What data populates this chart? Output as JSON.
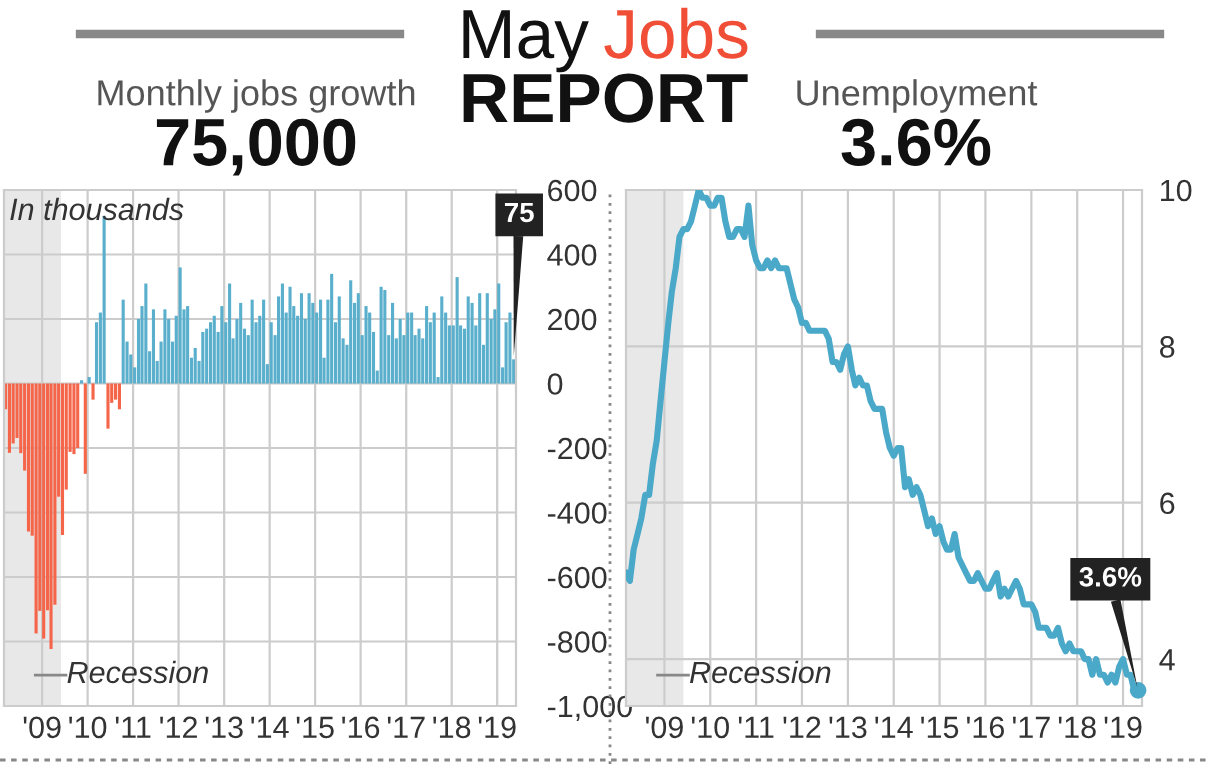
{
  "chart_data": [
    {
      "type": "bar",
      "title": "Monthly jobs growth",
      "subtitle": "75,000",
      "annotations": [
        "May Jobs REPORT",
        "In thousands",
        {
          "text": "75",
          "x": "2019-05",
          "y": 75
        }
      ],
      "x": [
        "2008-03",
        "2008-04",
        "2008-05",
        "2008-06",
        "2008-07",
        "2008-08",
        "2008-09",
        "2008-10",
        "2008-11",
        "2008-12",
        "2009-01",
        "2009-02",
        "2009-03",
        "2009-04",
        "2009-05",
        "2009-06",
        "2009-07",
        "2009-08",
        "2009-09",
        "2009-10",
        "2009-11",
        "2009-12",
        "2010-01",
        "2010-02",
        "2010-03",
        "2010-04",
        "2010-05",
        "2010-06",
        "2010-07",
        "2010-08",
        "2010-09",
        "2010-10",
        "2010-11",
        "2010-12",
        "2011-01",
        "2011-02",
        "2011-03",
        "2011-04",
        "2011-05",
        "2011-06",
        "2011-07",
        "2011-08",
        "2011-09",
        "2011-10",
        "2011-11",
        "2011-12",
        "2012-01",
        "2012-02",
        "2012-03",
        "2012-04",
        "2012-05",
        "2012-06",
        "2012-07",
        "2012-08",
        "2012-09",
        "2012-10",
        "2012-11",
        "2012-12",
        "2013-01",
        "2013-02",
        "2013-03",
        "2013-04",
        "2013-05",
        "2013-06",
        "2013-07",
        "2013-08",
        "2013-09",
        "2013-10",
        "2013-11",
        "2013-12",
        "2014-01",
        "2014-02",
        "2014-03",
        "2014-04",
        "2014-05",
        "2014-06",
        "2014-07",
        "2014-08",
        "2014-09",
        "2014-10",
        "2014-11",
        "2014-12",
        "2015-01",
        "2015-02",
        "2015-03",
        "2015-04",
        "2015-05",
        "2015-06",
        "2015-07",
        "2015-08",
        "2015-09",
        "2015-10",
        "2015-11",
        "2015-12",
        "2016-01",
        "2016-02",
        "2016-03",
        "2016-04",
        "2016-05",
        "2016-06",
        "2016-07",
        "2016-08",
        "2016-09",
        "2016-10",
        "2016-11",
        "2016-12",
        "2017-01",
        "2017-02",
        "2017-03",
        "2017-04",
        "2017-05",
        "2017-06",
        "2017-07",
        "2017-08",
        "2017-09",
        "2017-10",
        "2017-11",
        "2017-12",
        "2018-01",
        "2018-02",
        "2018-03",
        "2018-04",
        "2018-05",
        "2018-06",
        "2018-07",
        "2018-08",
        "2018-09",
        "2018-10",
        "2018-11",
        "2018-12",
        "2019-01",
        "2019-02",
        "2019-03",
        "2019-04",
        "2019-05"
      ],
      "values": [
        -80,
        -215,
        -186,
        -169,
        -216,
        -270,
        -459,
        -472,
        -775,
        -705,
        -791,
        -703,
        -823,
        -686,
        -351,
        -470,
        -329,
        -212,
        -219,
        -200,
        10,
        -280,
        20,
        -50,
        190,
        220,
        520,
        -140,
        -60,
        -50,
        -80,
        260,
        130,
        90,
        50,
        200,
        240,
        310,
        100,
        230,
        70,
        130,
        230,
        200,
        130,
        210,
        360,
        230,
        240,
        80,
        110,
        70,
        160,
        170,
        190,
        210,
        160,
        240,
        190,
        310,
        140,
        200,
        250,
        170,
        150,
        260,
        190,
        210,
        260,
        60,
        190,
        150,
        270,
        310,
        220,
        300,
        240,
        210,
        280,
        200,
        280,
        250,
        220,
        260,
        80,
        260,
        340,
        190,
        270,
        140,
        120,
        320,
        250,
        280,
        150,
        240,
        220,
        160,
        40,
        300,
        290,
        150,
        250,
        140,
        200,
        150,
        220,
        220,
        150,
        170,
        140,
        240,
        190,
        220,
        20,
        270,
        220,
        180,
        180,
        330,
        180,
        170,
        270,
        250,
        180,
        280,
        120,
        280,
        200,
        230,
        310,
        50,
        190,
        220,
        75
      ],
      "colors": [
        "#f4654a",
        "#f4654a",
        "#f4654a",
        "#f4654a",
        "#f4654a",
        "#f4654a",
        "#f4654a",
        "#f4654a",
        "#f4654a",
        "#f4654a",
        "#f4654a",
        "#f4654a",
        "#f4654a",
        "#f4654a",
        "#f4654a",
        "#f4654a",
        "#f4654a",
        "#f4654a",
        "#f4654a",
        "#f4654a",
        "#5aafcc",
        "#f4654a",
        "#5aafcc",
        "#f4654a",
        "#5aafcc",
        "#5aafcc",
        "#5aafcc",
        "#f4654a",
        "#f4654a",
        "#f4654a",
        "#f4654a",
        "#5aafcc",
        "#5aafcc",
        "#5aafcc",
        "#5aafcc",
        "#5aafcc",
        "#5aafcc",
        "#5aafcc",
        "#5aafcc",
        "#5aafcc",
        "#5aafcc",
        "#5aafcc",
        "#5aafcc",
        "#5aafcc",
        "#5aafcc",
        "#5aafcc",
        "#5aafcc",
        "#5aafcc",
        "#5aafcc",
        "#5aafcc",
        "#5aafcc",
        "#5aafcc",
        "#5aafcc",
        "#5aafcc",
        "#5aafcc",
        "#5aafcc",
        "#5aafcc",
        "#5aafcc",
        "#5aafcc",
        "#5aafcc",
        "#5aafcc",
        "#5aafcc",
        "#5aafcc",
        "#5aafcc",
        "#5aafcc",
        "#5aafcc",
        "#5aafcc",
        "#5aafcc",
        "#5aafcc",
        "#5aafcc",
        "#5aafcc",
        "#5aafcc",
        "#5aafcc",
        "#5aafcc",
        "#5aafcc",
        "#5aafcc",
        "#5aafcc",
        "#5aafcc",
        "#5aafcc",
        "#5aafcc",
        "#5aafcc",
        "#5aafcc",
        "#5aafcc",
        "#5aafcc",
        "#5aafcc",
        "#5aafcc",
        "#5aafcc",
        "#5aafcc",
        "#5aafcc",
        "#5aafcc",
        "#5aafcc",
        "#5aafcc",
        "#5aafcc",
        "#5aafcc",
        "#5aafcc",
        "#5aafcc",
        "#5aafcc",
        "#5aafcc",
        "#5aafcc",
        "#5aafcc",
        "#5aafcc",
        "#5aafcc",
        "#5aafcc",
        "#5aafcc",
        "#5aafcc",
        "#5aafcc",
        "#5aafcc",
        "#5aafcc",
        "#5aafcc",
        "#5aafcc",
        "#5aafcc",
        "#5aafcc",
        "#5aafcc",
        "#5aafcc",
        "#5aafcc",
        "#5aafcc",
        "#5aafcc",
        "#5aafcc",
        "#5aafcc",
        "#5aafcc",
        "#5aafcc",
        "#5aafcc",
        "#5aafcc",
        "#5aafcc",
        "#5aafcc",
        "#5aafcc",
        "#5aafcc",
        "#5aafcc",
        "#5aafcc",
        "#5aafcc",
        "#5aafcc",
        "#5aafcc",
        "#5aafcc",
        "#5aafcc",
        "#5aafcc"
      ],
      "xlim": [
        "2008-03",
        "2019-06"
      ],
      "xticks": [
        {
          "value": "2009-01",
          "label": "'09"
        },
        {
          "value": "2010-01",
          "label": "'10"
        },
        {
          "value": "2011-01",
          "label": "'11"
        },
        {
          "value": "2012-01",
          "label": "'12"
        },
        {
          "value": "2013-01",
          "label": "'13"
        },
        {
          "value": "2014-01",
          "label": "'14"
        },
        {
          "value": "2015-01",
          "label": "'15"
        },
        {
          "value": "2016-01",
          "label": "'16"
        },
        {
          "value": "2017-01",
          "label": "'17"
        },
        {
          "value": "2018-01",
          "label": "'18"
        },
        {
          "value": "2019-01",
          "label": "'19"
        }
      ],
      "ylim": [
        -1000,
        600
      ],
      "yticks": [
        600,
        400,
        200,
        0,
        -200,
        -400,
        -600,
        -800,
        {
          "value": -1000,
          "label": "-1,000"
        }
      ],
      "bands": [
        {
          "axis": "x",
          "from": "2008-03",
          "to": "2009-06",
          "label": "Recession",
          "color": "#e8e8e8"
        }
      ],
      "grid": true
    },
    {
      "type": "line",
      "title": "Unemployment",
      "subtitle": "3.6%",
      "annotations": [
        {
          "text": "3.6%",
          "x": "2019-05",
          "y": 3.6
        }
      ],
      "x": [
        "2008-03",
        "2008-04",
        "2008-05",
        "2008-06",
        "2008-07",
        "2008-08",
        "2008-09",
        "2008-10",
        "2008-11",
        "2008-12",
        "2009-01",
        "2009-02",
        "2009-03",
        "2009-04",
        "2009-05",
        "2009-06",
        "2009-07",
        "2009-08",
        "2009-09",
        "2009-10",
        "2009-11",
        "2009-12",
        "2010-01",
        "2010-02",
        "2010-03",
        "2010-04",
        "2010-05",
        "2010-06",
        "2010-07",
        "2010-08",
        "2010-09",
        "2010-10",
        "2010-11",
        "2010-12",
        "2011-01",
        "2011-02",
        "2011-03",
        "2011-04",
        "2011-05",
        "2011-06",
        "2011-07",
        "2011-08",
        "2011-09",
        "2011-10",
        "2011-11",
        "2011-12",
        "2012-01",
        "2012-02",
        "2012-03",
        "2012-04",
        "2012-05",
        "2012-06",
        "2012-07",
        "2012-08",
        "2012-09",
        "2012-10",
        "2012-11",
        "2012-12",
        "2013-01",
        "2013-02",
        "2013-03",
        "2013-04",
        "2013-05",
        "2013-06",
        "2013-07",
        "2013-08",
        "2013-09",
        "2013-10",
        "2013-11",
        "2013-12",
        "2014-01",
        "2014-02",
        "2014-03",
        "2014-04",
        "2014-05",
        "2014-06",
        "2014-07",
        "2014-08",
        "2014-09",
        "2014-10",
        "2014-11",
        "2014-12",
        "2015-01",
        "2015-02",
        "2015-03",
        "2015-04",
        "2015-05",
        "2015-06",
        "2015-07",
        "2015-08",
        "2015-09",
        "2015-10",
        "2015-11",
        "2015-12",
        "2016-01",
        "2016-02",
        "2016-03",
        "2016-04",
        "2016-05",
        "2016-06",
        "2016-07",
        "2016-08",
        "2016-09",
        "2016-10",
        "2016-11",
        "2016-12",
        "2017-01",
        "2017-02",
        "2017-03",
        "2017-04",
        "2017-05",
        "2017-06",
        "2017-07",
        "2017-08",
        "2017-09",
        "2017-10",
        "2017-11",
        "2017-12",
        "2018-01",
        "2018-02",
        "2018-03",
        "2018-04",
        "2018-05",
        "2018-06",
        "2018-07",
        "2018-08",
        "2018-09",
        "2018-10",
        "2018-11",
        "2018-12",
        "2019-01",
        "2019-02",
        "2019-03",
        "2019-04",
        "2019-05"
      ],
      "values": [
        5.1,
        5.0,
        5.4,
        5.6,
        5.8,
        6.1,
        6.1,
        6.5,
        6.8,
        7.3,
        7.8,
        8.3,
        8.7,
        9.0,
        9.4,
        9.5,
        9.5,
        9.6,
        9.8,
        10.0,
        9.9,
        9.9,
        9.8,
        9.8,
        9.9,
        9.9,
        9.6,
        9.4,
        9.4,
        9.5,
        9.5,
        9.4,
        9.8,
        9.3,
        9.1,
        9.0,
        9.0,
        9.1,
        9.0,
        9.1,
        9.0,
        9.0,
        9.0,
        8.8,
        8.6,
        8.5,
        8.3,
        8.3,
        8.2,
        8.2,
        8.2,
        8.2,
        8.2,
        8.1,
        7.8,
        7.8,
        7.7,
        7.9,
        8.0,
        7.7,
        7.5,
        7.6,
        7.5,
        7.5,
        7.3,
        7.2,
        7.2,
        7.2,
        6.9,
        6.7,
        6.6,
        6.7,
        6.7,
        6.2,
        6.3,
        6.1,
        6.2,
        6.1,
        5.9,
        5.7,
        5.8,
        5.6,
        5.7,
        5.5,
        5.4,
        5.4,
        5.6,
        5.3,
        5.2,
        5.1,
        5.0,
        5.0,
        5.1,
        5.0,
        4.9,
        4.9,
        5.0,
        5.1,
        4.8,
        4.9,
        4.8,
        4.9,
        5.0,
        4.9,
        4.7,
        4.7,
        4.7,
        4.6,
        4.4,
        4.4,
        4.4,
        4.3,
        4.3,
        4.4,
        4.2,
        4.1,
        4.2,
        4.1,
        4.1,
        4.1,
        4.0,
        4.0,
        3.8,
        4.0,
        3.8,
        3.8,
        3.7,
        3.8,
        3.7,
        3.9,
        4.0,
        3.8,
        3.8,
        3.6,
        3.6
      ],
      "color": "#4aa8c8",
      "xlim": [
        "2008-03",
        "2019-06"
      ],
      "xticks": [
        {
          "value": "2009-01",
          "label": "'09"
        },
        {
          "value": "2010-01",
          "label": "'10"
        },
        {
          "value": "2011-01",
          "label": "'11"
        },
        {
          "value": "2012-01",
          "label": "'12"
        },
        {
          "value": "2013-01",
          "label": "'13"
        },
        {
          "value": "2014-01",
          "label": "'14"
        },
        {
          "value": "2015-01",
          "label": "'15"
        },
        {
          "value": "2016-01",
          "label": "'16"
        },
        {
          "value": "2017-01",
          "label": "'17"
        },
        {
          "value": "2018-01",
          "label": "'18"
        },
        {
          "value": "2019-01",
          "label": "'19"
        }
      ],
      "ylim": [
        3.4,
        10
      ],
      "yticks": [
        4,
        6,
        8,
        10
      ],
      "bands": [
        {
          "axis": "x",
          "from": "2008-03",
          "to": "2009-06",
          "label": "Recession",
          "color": "#e8e8e8"
        }
      ],
      "grid": true
    }
  ]
}
